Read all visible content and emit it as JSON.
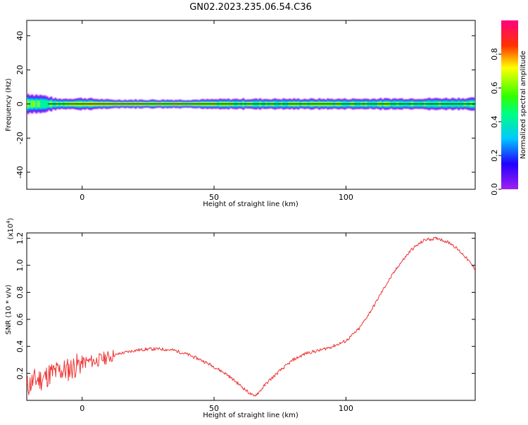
{
  "title": "GN02.2023.235.06.54.C36",
  "colors": {
    "line": "#ee3333",
    "frame": "#000000",
    "zero_line": "#000000"
  },
  "chart_data": [
    {
      "type": "heatmap",
      "xlabel": "Height of straight line (km)",
      "ylabel": "Frequency (Hz)",
      "xlim": [
        -21,
        149
      ],
      "ylim": [
        -50,
        49
      ],
      "xticks": [
        0,
        50,
        100
      ],
      "yticks": [
        -40,
        -20,
        0,
        20,
        40
      ],
      "grid": false,
      "colorbar": {
        "label": "Normalized spectral amplitude",
        "range": [
          0,
          1
        ],
        "ticks": [
          "0.0",
          "0.2",
          "0.4",
          "0.6",
          "0.8"
        ],
        "colormap": "rainbow: violet-blue-cyan-green-yellow-red-magenta"
      },
      "band": {
        "center_freq_hz": 0,
        "description": "strong spectral energy concentrated near 0 Hz across all heights",
        "halfwidth_hz_by_height": [
          {
            "x": -21,
            "hw": 6
          },
          {
            "x": -15,
            "hw": 5
          },
          {
            "x": -10,
            "hw": 3
          },
          {
            "x": 0,
            "hw": 3.5
          },
          {
            "x": 10,
            "hw": 2.5
          },
          {
            "x": 40,
            "hw": 2.5
          },
          {
            "x": 60,
            "hw": 3
          },
          {
            "x": 100,
            "hw": 3
          },
          {
            "x": 149,
            "hw": 3.5
          }
        ],
        "peak_amplitude_by_height": [
          {
            "x": -21,
            "a": 0.7
          },
          {
            "x": -15,
            "a": 0.55
          },
          {
            "x": 0,
            "a": 0.85
          },
          {
            "x": 12,
            "a": 0.95
          },
          {
            "x": 25,
            "a": 0.9
          },
          {
            "x": 40,
            "a": 0.8
          },
          {
            "x": 60,
            "a": 0.65
          },
          {
            "x": 90,
            "a": 0.7
          },
          {
            "x": 120,
            "a": 0.6
          },
          {
            "x": 149,
            "a": 0.6
          }
        ]
      }
    },
    {
      "type": "line",
      "xlabel": "Height of straight line (km)",
      "ylabel": "SNR (10 * v/v)",
      "y_multiplier": "(x10",
      "y_multiplier_exp": "4",
      "y_multiplier_close": ")",
      "xlim": [
        -21,
        149
      ],
      "ylim": [
        0.0,
        1.24
      ],
      "xticks": [
        0,
        50,
        100
      ],
      "yticks": [
        0.2,
        0.4,
        0.6,
        0.8,
        1.0,
        1.2
      ],
      "ytick_labels": [
        "0.2",
        "0.4",
        "0.6",
        "0.8",
        "1.0",
        "1.2"
      ],
      "grid": false,
      "series": [
        {
          "x": [
            -21,
            -18,
            -15,
            -12,
            -10,
            -8,
            -5,
            -3,
            0,
            3,
            5,
            8,
            10,
            15,
            20,
            25,
            30,
            35,
            40,
            45,
            50,
            55,
            60,
            63,
            65,
            67,
            70,
            75,
            80,
            85,
            90,
            95,
            100,
            105,
            110,
            115,
            120,
            125,
            130,
            135,
            140,
            145,
            149
          ],
          "y": [
            0.1,
            0.15,
            0.16,
            0.2,
            0.21,
            0.22,
            0.23,
            0.25,
            0.28,
            0.29,
            0.29,
            0.31,
            0.32,
            0.35,
            0.37,
            0.38,
            0.38,
            0.37,
            0.34,
            0.3,
            0.25,
            0.19,
            0.11,
            0.06,
            0.03,
            0.06,
            0.13,
            0.22,
            0.3,
            0.35,
            0.37,
            0.4,
            0.44,
            0.53,
            0.68,
            0.85,
            1.0,
            1.12,
            1.19,
            1.2,
            1.16,
            1.07,
            0.97
          ]
        }
      ]
    }
  ]
}
